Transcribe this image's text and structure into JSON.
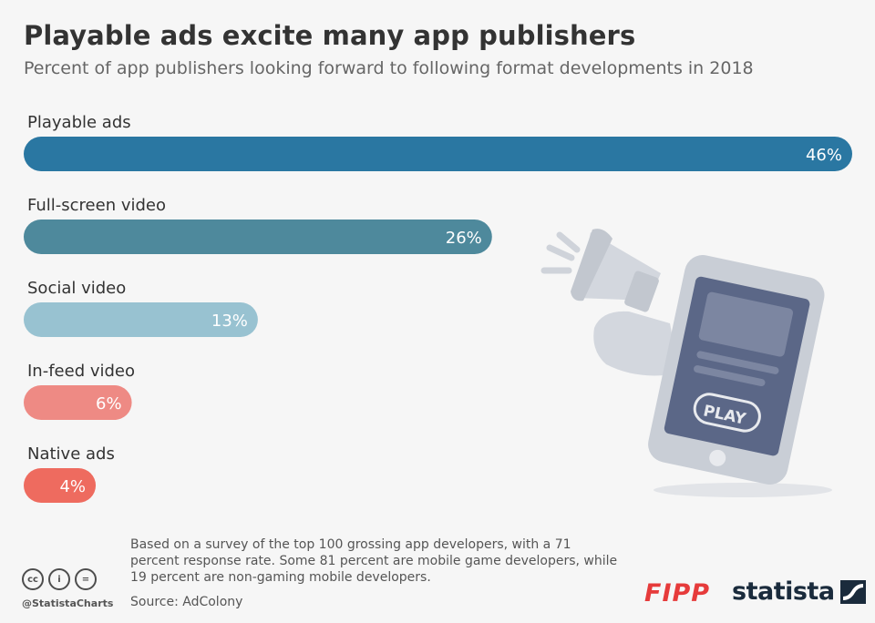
{
  "header": {
    "title": "Playable ads excite many app publishers",
    "subtitle": "Percent of app publishers looking forward to following format developments in 2018"
  },
  "chart_data": {
    "type": "bar",
    "orientation": "horizontal",
    "title": "Playable ads excite many app publishers",
    "subtitle": "Percent of app publishers looking forward to following format developments in 2018",
    "categories": [
      "Playable ads",
      "Full-screen video",
      "Social video",
      "In-feed video",
      "Native ads"
    ],
    "values": [
      46,
      26,
      13,
      6,
      4
    ],
    "value_labels": [
      "46%",
      "26%",
      "13%",
      "6%",
      "4%"
    ],
    "unit": "%",
    "xlim": [
      0,
      46
    ],
    "grid": false,
    "legend": "none",
    "colors": [
      "#2a77a2",
      "#4e899c",
      "#98c2d1",
      "#ee8a84",
      "#ee6b5f"
    ]
  },
  "illustration": {
    "play_label": "PLAY",
    "icons": [
      "megaphone-icon",
      "smartphone-icon"
    ],
    "colors": {
      "phone": "#c9ced6",
      "screen": "#5b6787",
      "light": "#dde0e6"
    }
  },
  "footer": {
    "note": "Based on a survey of the top 100 grossing app developers, with a 71 percent response rate. Some 81 percent are mobile game developers, while 19 percent are non-gaming mobile developers.",
    "source": "Source: AdColony",
    "handle": "@StatistaCharts",
    "cc_icons": [
      "cc",
      "i",
      "="
    ],
    "fipp_logo": "FIPP",
    "statista_logo": "statista"
  }
}
